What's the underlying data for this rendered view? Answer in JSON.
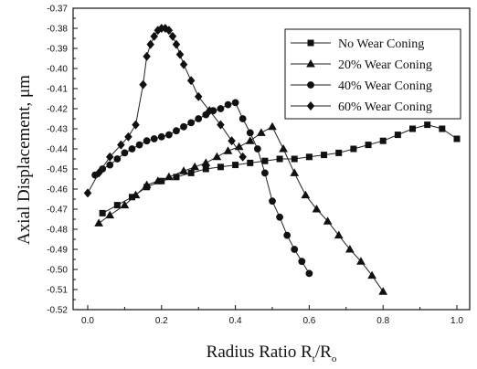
{
  "chart_data": {
    "type": "line",
    "title": "",
    "xlabel": "Radius Ratio R",
    "xlabel_sub1": "t",
    "xlabel_slash": "/R",
    "xlabel_sub2": "o",
    "ylabel": "Axial Displacement,  μm",
    "xlim": [
      -0.05,
      1.02
    ],
    "ylim": [
      -0.52,
      -0.37
    ],
    "xticks": [
      "0.0",
      "0.2",
      "0.4",
      "0.6",
      "0.8",
      "1.0"
    ],
    "yticks": [
      "-0.37",
      "-0.38",
      "-0.39",
      "-0.40",
      "-0.41",
      "-0.42",
      "-0.43",
      "-0.44",
      "-0.45",
      "-0.46",
      "-0.47",
      "-0.48",
      "-0.49",
      "-0.50",
      "-0.51",
      "-0.52"
    ],
    "legend_position": "top-right",
    "series": [
      {
        "name": "No Wear Coning",
        "marker": "square",
        "x": [
          0.04,
          0.08,
          0.12,
          0.16,
          0.2,
          0.24,
          0.28,
          0.32,
          0.36,
          0.4,
          0.44,
          0.48,
          0.52,
          0.56,
          0.6,
          0.64,
          0.68,
          0.72,
          0.76,
          0.8,
          0.84,
          0.88,
          0.92,
          0.96,
          1.0
        ],
        "y": [
          -0.472,
          -0.468,
          -0.464,
          -0.459,
          -0.456,
          -0.454,
          -0.452,
          -0.45,
          -0.449,
          -0.448,
          -0.447,
          -0.446,
          -0.445,
          -0.445,
          -0.444,
          -0.443,
          -0.442,
          -0.44,
          -0.438,
          -0.436,
          -0.433,
          -0.43,
          -0.428,
          -0.43,
          -0.435
        ]
      },
      {
        "name": "20% Wear Coning",
        "marker": "triangle",
        "x": [
          0.03,
          0.06,
          0.1,
          0.13,
          0.16,
          0.19,
          0.22,
          0.26,
          0.29,
          0.32,
          0.35,
          0.38,
          0.41,
          0.44,
          0.47,
          0.5,
          0.53,
          0.56,
          0.59,
          0.62,
          0.65,
          0.68,
          0.71,
          0.74,
          0.77,
          0.8
        ],
        "y": [
          -0.477,
          -0.473,
          -0.468,
          -0.463,
          -0.458,
          -0.456,
          -0.454,
          -0.451,
          -0.449,
          -0.447,
          -0.444,
          -0.441,
          -0.439,
          -0.436,
          -0.432,
          -0.429,
          -0.44,
          -0.452,
          -0.463,
          -0.47,
          -0.476,
          -0.483,
          -0.49,
          -0.496,
          -0.503,
          -0.511
        ]
      },
      {
        "name": "40% Wear Coning",
        "marker": "circle",
        "x": [
          0.02,
          0.04,
          0.06,
          0.08,
          0.1,
          0.12,
          0.14,
          0.16,
          0.18,
          0.2,
          0.22,
          0.24,
          0.26,
          0.28,
          0.3,
          0.32,
          0.34,
          0.36,
          0.38,
          0.4,
          0.42,
          0.44,
          0.46,
          0.48,
          0.5,
          0.52,
          0.54,
          0.56,
          0.58,
          0.6
        ],
        "y": [
          -0.453,
          -0.45,
          -0.448,
          -0.445,
          -0.442,
          -0.44,
          -0.438,
          -0.436,
          -0.435,
          -0.434,
          -0.433,
          -0.431,
          -0.429,
          -0.427,
          -0.425,
          -0.423,
          -0.421,
          -0.42,
          -0.418,
          -0.417,
          -0.425,
          -0.432,
          -0.44,
          -0.452,
          -0.466,
          -0.474,
          -0.483,
          -0.49,
          -0.496,
          -0.502
        ]
      },
      {
        "name": "60% Wear Coning",
        "marker": "diamond",
        "x": [
          0.0,
          0.03,
          0.06,
          0.09,
          0.11,
          0.13,
          0.15,
          0.16,
          0.17,
          0.18,
          0.19,
          0.2,
          0.21,
          0.22,
          0.23,
          0.24,
          0.25,
          0.26,
          0.28,
          0.3,
          0.33,
          0.36,
          0.39,
          0.42
        ],
        "y": [
          -0.462,
          -0.452,
          -0.444,
          -0.438,
          -0.434,
          -0.428,
          -0.408,
          -0.394,
          -0.388,
          -0.384,
          -0.381,
          -0.38,
          -0.38,
          -0.381,
          -0.384,
          -0.388,
          -0.393,
          -0.398,
          -0.406,
          -0.414,
          -0.421,
          -0.428,
          -0.436,
          -0.444
        ]
      }
    ]
  }
}
